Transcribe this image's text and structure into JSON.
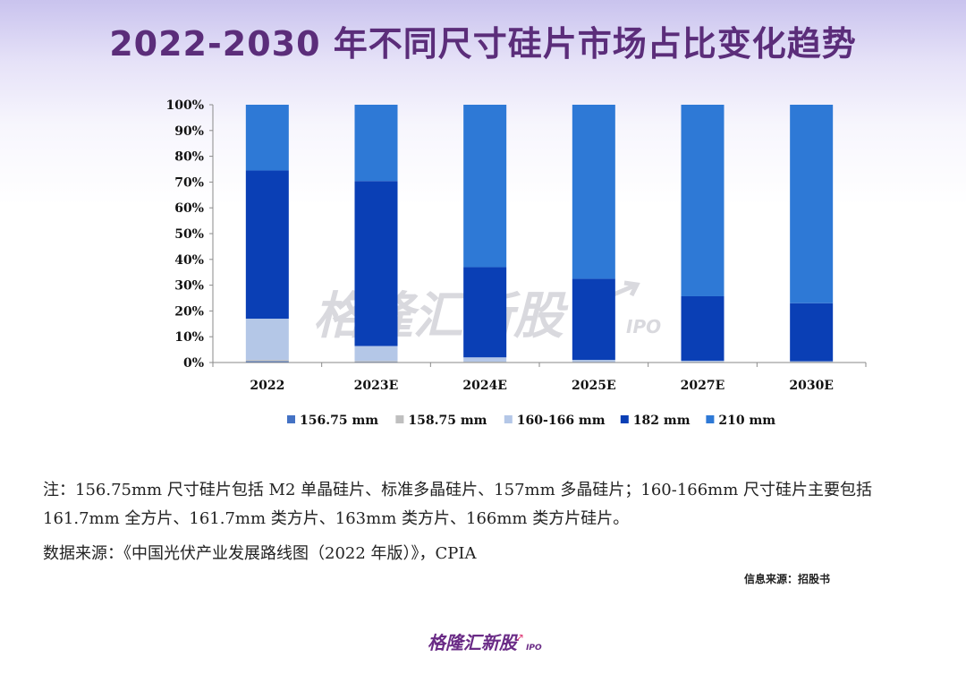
{
  "title": "2022-2030 年不同尺寸硅片市场占比变化趋势",
  "chart_data": {
    "type": "bar",
    "stacked": true,
    "categories": [
      "2022",
      "2023E",
      "2024E",
      "2025E",
      "2027E",
      "2030E"
    ],
    "y_ticks": [
      "0%",
      "10%",
      "20%",
      "30%",
      "40%",
      "50%",
      "60%",
      "70%",
      "80%",
      "90%",
      "100%"
    ],
    "ylim": [
      0,
      100
    ],
    "legend_position": "bottom",
    "series": [
      {
        "name": "156.75 mm",
        "color": "#4472c4",
        "values": [
          0.5,
          0.3,
          0,
          0,
          0,
          0
        ]
      },
      {
        "name": "158.75 mm",
        "color": "#bfbfbf",
        "values": [
          0.5,
          0.3,
          0.3,
          0,
          0,
          0
        ]
      },
      {
        "name": "160-166 mm",
        "color": "#b4c7e7",
        "values": [
          16,
          5.8,
          1.7,
          1,
          0.7,
          0.5
        ]
      },
      {
        "name": "182 mm",
        "color": "#0a3fb5",
        "values": [
          57.5,
          64,
          35,
          31.5,
          25,
          22.5
        ]
      },
      {
        "name": "210 mm",
        "color": "#2e79d6",
        "values": [
          25.5,
          29.6,
          63,
          67.5,
          74.3,
          77
        ]
      }
    ]
  },
  "watermark": {
    "main": "格隆汇新股",
    "suffix": "IPO"
  },
  "note": "注：156.75mm 尺寸硅片包括 M2 单晶硅片、标准多晶硅片、157mm 多晶硅片；160-166mm 尺寸硅片主要包括 161.7mm 全方片、161.7mm 类方片、163mm 类方片、166mm 类方片硅片。",
  "source": "数据来源：《中国光伏产业发展路线图（2022 年版）》，CPIA",
  "info_source": "信息来源：招股书",
  "footer": {
    "logo_text": "格隆汇新股",
    "logo_suffix": "IPO"
  }
}
